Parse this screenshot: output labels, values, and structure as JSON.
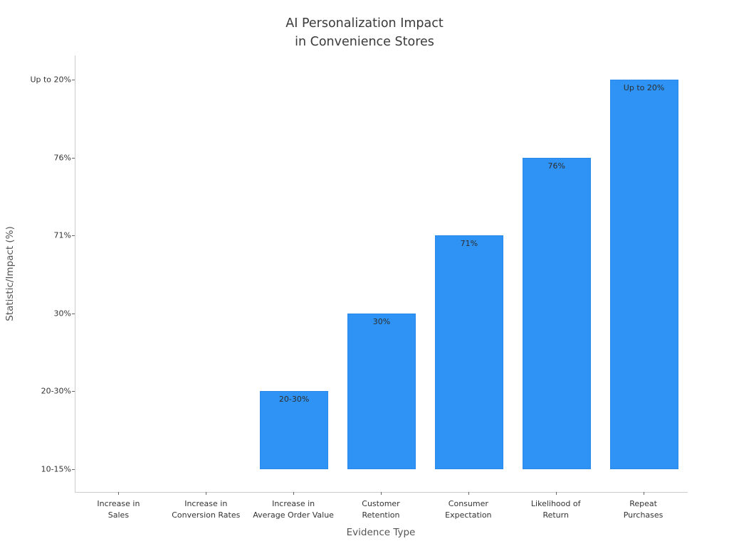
{
  "title": {
    "line1": "AI Personalization Impact",
    "line2": "in Convenience Stores"
  },
  "chart_data": {
    "type": "bar",
    "title": "AI Personalization Impact in Convenience Stores",
    "xlabel": "Evidence Type",
    "ylabel": "Statistic/Impact (%)",
    "grid": false,
    "legend": false,
    "y_axis_kind": "categorical-ordinal",
    "y_ticks_bottom_to_top": [
      "10-15%",
      "20-30%",
      "30%",
      "71%",
      "76%",
      "Up to 20%"
    ],
    "categories": [
      "Increase in Sales",
      "Increase in Conversion Rates",
      "Increase in Average Order Value",
      "Customer Retention",
      "Consumer Expectation",
      "Likelihood of Return",
      "Repeat Purchases"
    ],
    "bars": [
      {
        "category_lines": [
          "Increase in",
          "Sales"
        ],
        "value_label": "",
        "level": 0
      },
      {
        "category_lines": [
          "Increase in",
          "Conversion Rates"
        ],
        "value_label": "",
        "level": 0
      },
      {
        "category_lines": [
          "Increase in",
          "Average Order Value"
        ],
        "value_label": "20-30%",
        "level": 1
      },
      {
        "category_lines": [
          "Customer",
          "Retention"
        ],
        "value_label": "30%",
        "level": 2
      },
      {
        "category_lines": [
          "Consumer",
          "Expectation"
        ],
        "value_label": "71%",
        "level": 3
      },
      {
        "category_lines": [
          "Likelihood of",
          "Return"
        ],
        "value_label": "76%",
        "level": 4
      },
      {
        "category_lines": [
          "Repeat",
          "Purchases"
        ],
        "value_label": "Up to 20%",
        "level": 5
      }
    ],
    "colors": {
      "bar_fill": "#2E93F5",
      "bar_edge": "#2A88E8",
      "title_text": "#3a3a3a",
      "tick_label": "#333333",
      "axis_label": "#555555",
      "spine": "#cccccc"
    }
  }
}
